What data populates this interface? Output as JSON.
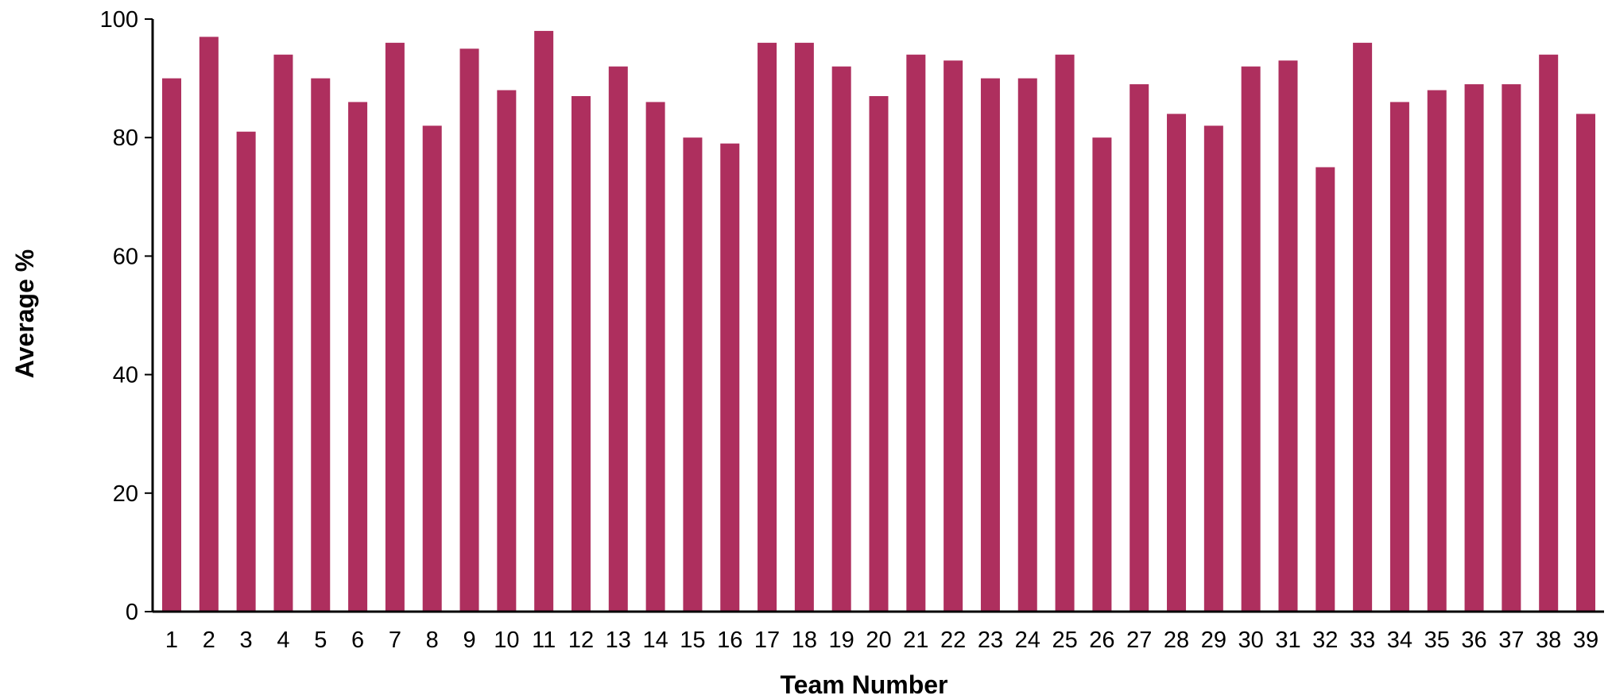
{
  "chart_data": {
    "type": "bar",
    "categories": [
      "1",
      "2",
      "3",
      "4",
      "5",
      "6",
      "7",
      "8",
      "9",
      "10",
      "11",
      "12",
      "13",
      "14",
      "15",
      "16",
      "17",
      "18",
      "19",
      "20",
      "21",
      "22",
      "23",
      "24",
      "25",
      "26",
      "27",
      "28",
      "29",
      "30",
      "31",
      "32",
      "33",
      "34",
      "35",
      "36",
      "37",
      "38",
      "39"
    ],
    "values": [
      90,
      97,
      81,
      94,
      90,
      86,
      96,
      82,
      95,
      88,
      98,
      87,
      92,
      86,
      80,
      79,
      96,
      96,
      92,
      87,
      94,
      93,
      90,
      90,
      94,
      80,
      89,
      84,
      82,
      92,
      93,
      75,
      96,
      86,
      88,
      89,
      89,
      94,
      84
    ],
    "xlabel": "Team Number",
    "ylabel": "Average %",
    "ylim": [
      0,
      100
    ],
    "yticks": [
      0,
      20,
      40,
      60,
      80,
      100
    ],
    "grid": false,
    "legend": "none",
    "bar_color": "#AE2F5E"
  }
}
